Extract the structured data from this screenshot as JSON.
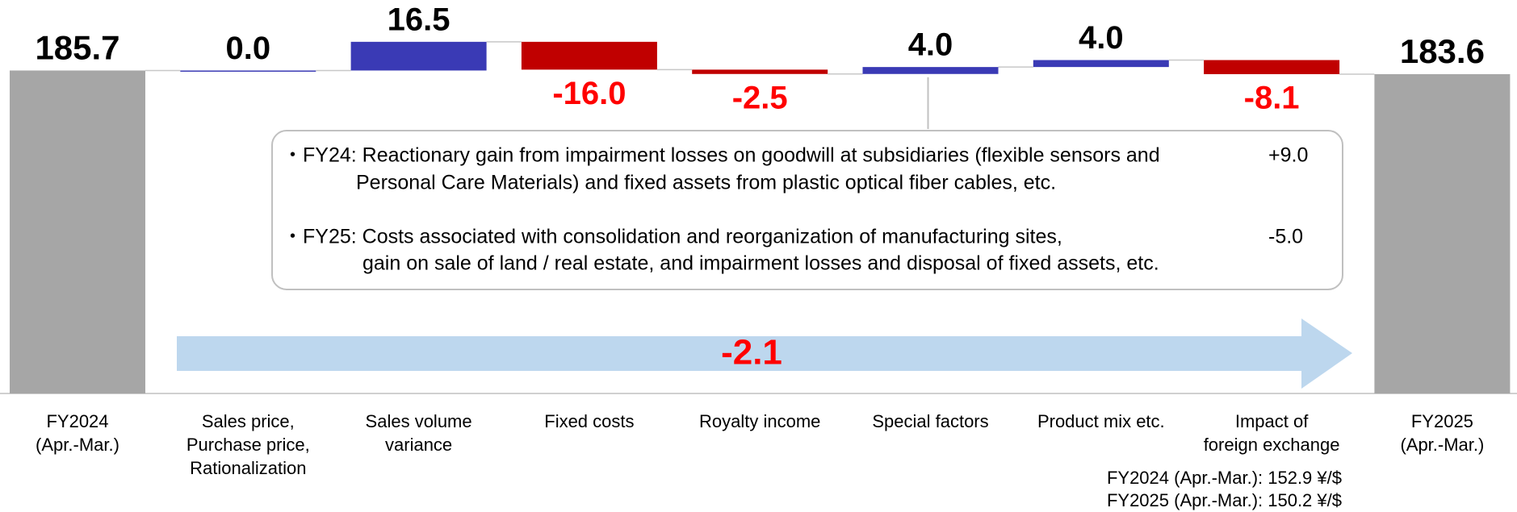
{
  "chart_data": {
    "type": "waterfall",
    "categories": [
      "FY2024\n(Apr.-Mar.)",
      "Sales price,\nPurchase price,\nRationalization",
      "Sales volume\nvariance",
      "Fixed costs",
      "Royalty income",
      "Special factors",
      "Product mix etc.",
      "Impact of\nforeign exchange",
      "FY2025\n(Apr.-Mar.)"
    ],
    "values": [
      185.7,
      0.0,
      16.5,
      -16.0,
      -2.5,
      4.0,
      4.0,
      -8.1,
      183.6
    ],
    "value_labels": [
      "185.7",
      "0.0",
      "16.5",
      "-16.0",
      "-2.5",
      "4.0",
      "4.0",
      "-8.1",
      "183.6"
    ],
    "is_total": [
      true,
      false,
      false,
      false,
      false,
      false,
      false,
      false,
      true
    ],
    "colors": {
      "total": "#a6a6a6",
      "increase": "#3a3ab5",
      "decrease": "#c00000"
    },
    "ylim": [
      0,
      200
    ],
    "annotations": [
      {
        "lines": [
          "・FY24: Reactionary gain from impairment losses on goodwill at subsidiaries (flexible sensors and",
          "Personal Care Materials) and fixed assets from plastic optical fiber cables, etc."
        ],
        "value": "+9.0"
      },
      {
        "lines": [
          "・FY25: Costs associated with consolidation and reorganization of manufacturing sites,",
          "gain on sale of land / real estate, and impairment losses and disposal of fixed assets, etc."
        ],
        "value": "-5.0"
      }
    ],
    "total_change": -2.1,
    "total_change_label": "-2.1",
    "footnotes": [
      "FY2024 (Apr.-Mar.): 152.9 ¥/$",
      "FY2025 (Apr.-Mar.): 150.2 ¥/$"
    ]
  }
}
